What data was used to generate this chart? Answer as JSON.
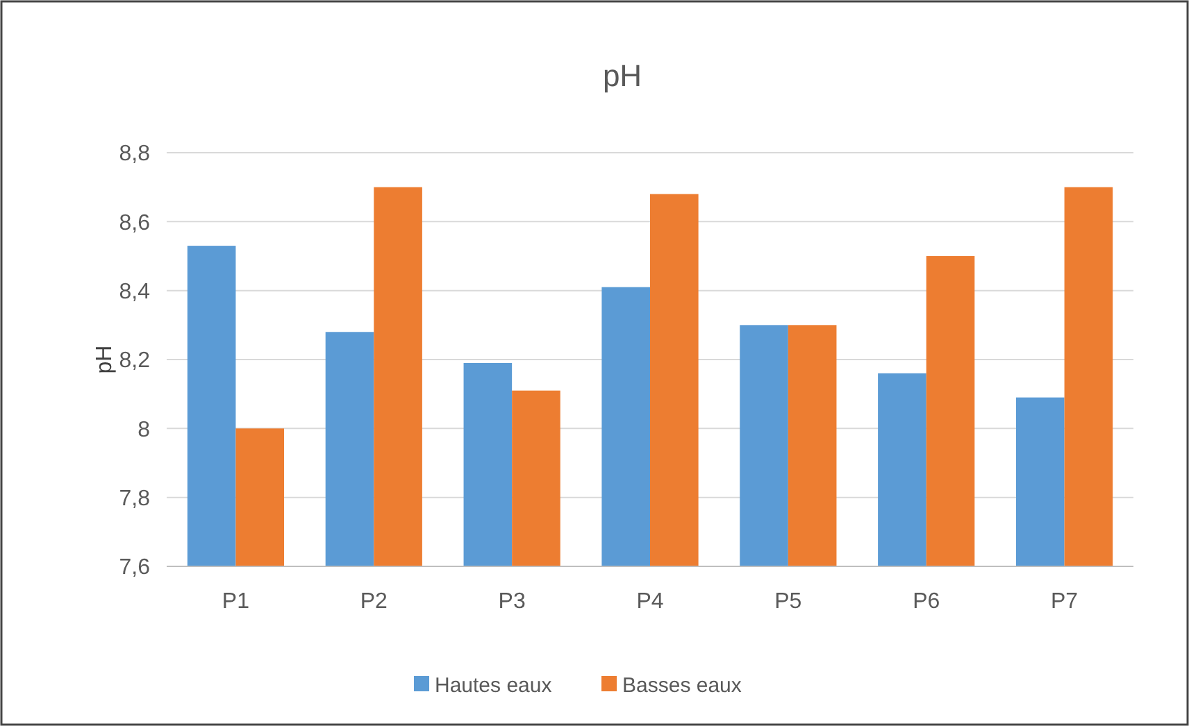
{
  "chart_data": {
    "type": "bar",
    "title": "pH",
    "ylabel": "pH",
    "categories": [
      "P1",
      "P2",
      "P3",
      "P4",
      "P5",
      "P6",
      "P7"
    ],
    "series": [
      {
        "name": "Hautes eaux",
        "color": "#5b9bd5",
        "values": [
          8.53,
          8.28,
          8.19,
          8.41,
          8.3,
          8.16,
          8.09
        ]
      },
      {
        "name": "Basses eaux",
        "color": "#ed7d31",
        "values": [
          8.0,
          8.7,
          8.11,
          8.68,
          8.3,
          8.5,
          8.7
        ]
      }
    ],
    "ylim": [
      7.6,
      8.8
    ],
    "yticks": [
      {
        "value": 7.6,
        "label": "7,6"
      },
      {
        "value": 7.8,
        "label": "7,8"
      },
      {
        "value": 8,
        "label": "8"
      },
      {
        "value": 8.2,
        "label": "8,2"
      },
      {
        "value": 8.4,
        "label": "8,4"
      },
      {
        "value": 8.6,
        "label": "8,6"
      },
      {
        "value": 8.8,
        "label": "8,8"
      }
    ],
    "grid": "y",
    "legend": "bottom"
  }
}
